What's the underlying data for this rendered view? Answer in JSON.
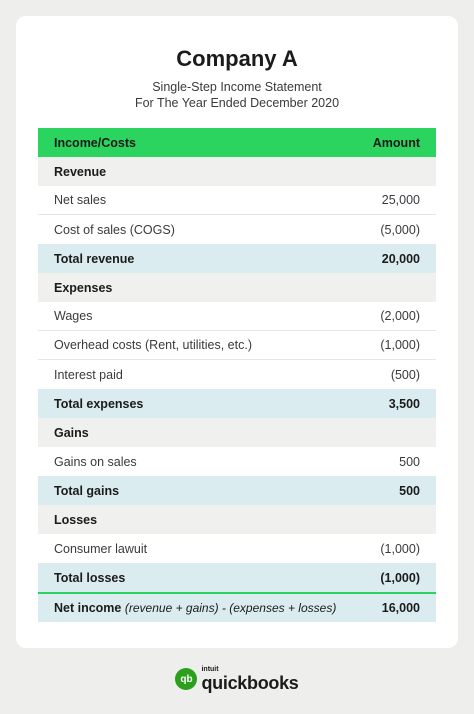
{
  "statement": {
    "company": "Company A",
    "subtitle_line1": "Single-Step Income Statement",
    "subtitle_line2": "For The Year Ended December 2020"
  },
  "table": {
    "header": {
      "label": "Income/Costs",
      "value": "Amount"
    },
    "revenue_section": "Revenue",
    "net_sales": {
      "label": "Net sales",
      "value": "25,000"
    },
    "cogs": {
      "label": "Cost of sales (COGS)",
      "value": "(5,000)"
    },
    "total_revenue": {
      "label": "Total revenue",
      "value": "20,000"
    },
    "expenses_section": "Expenses",
    "wages": {
      "label": "Wages",
      "value": "(2,000)"
    },
    "overhead": {
      "label": "Overhead costs (Rent, utilities, etc.)",
      "value": "(1,000)"
    },
    "interest": {
      "label": "Interest paid",
      "value": "(500)"
    },
    "total_expenses": {
      "label": "Total expenses",
      "value": "3,500"
    },
    "gains_section": "Gains",
    "gains_on_sales": {
      "label": "Gains on sales",
      "value": "500"
    },
    "total_gains": {
      "label": "Total gains",
      "value": "500"
    },
    "losses_section": "Losses",
    "consumer_lawsuit": {
      "label": "Consumer lawuit",
      "value": "(1,000)"
    },
    "total_losses": {
      "label": "Total losses",
      "value": "(1,000)"
    },
    "net_income": {
      "label": "Net income",
      "formula": "(revenue + gains) - (expenses + losses)",
      "value": "16,000"
    }
  },
  "brand": {
    "small": "intuit",
    "big": "quickbooks",
    "mark": "qb",
    "color": "#2ca01c"
  }
}
